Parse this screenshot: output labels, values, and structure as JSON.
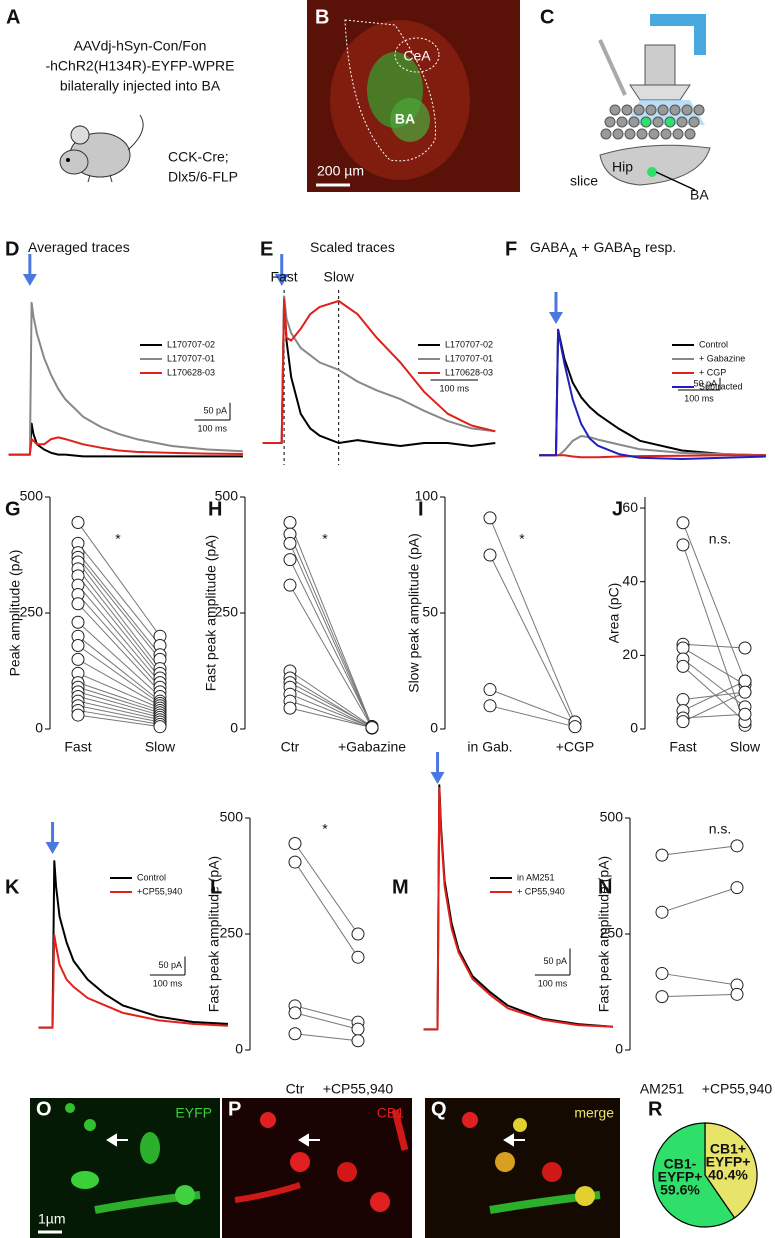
{
  "panel_a": {
    "label": "A",
    "lines": [
      "AAVdj-hSyn-Con/Fon",
      "-hChR2(H134R)-EYFP-WPRE",
      "bilaterally injected into BA"
    ],
    "mouse_lines": [
      "CCK-Cre;",
      "Dlx5/6-FLP"
    ]
  },
  "panel_b": {
    "label": "B",
    "regions": [
      "CeA",
      "BA"
    ],
    "scale_bar": "200 µm"
  },
  "panel_c": {
    "label": "C",
    "parts": [
      "Hip",
      "slice",
      "BA"
    ]
  },
  "images": {
    "o": {
      "label": "O",
      "channel": "EYFP",
      "scale_bar": "1µm"
    },
    "p": {
      "label": "P",
      "channel": "CB1"
    },
    "q": {
      "label": "Q",
      "channel": "merge"
    }
  },
  "chart_data": [
    {
      "type": "trace",
      "label": "D",
      "title": [
        {
          "text": "Averaged traces"
        }
      ],
      "stimulus": 0,
      "x": [
        -60,
        -5,
        0,
        5,
        10,
        20,
        40,
        60,
        80,
        100,
        150,
        200,
        250,
        300,
        400,
        500,
        600
      ],
      "series": [
        {
          "name": "L170707-02",
          "color": "#000000",
          "values": [
            0,
            0,
            0,
            90,
            60,
            30,
            15,
            5,
            0,
            0,
            -5,
            -5,
            -5,
            -5,
            -5,
            -5,
            -5
          ]
        },
        {
          "name": "L170707-01",
          "color": "#888888",
          "values": [
            0,
            0,
            0,
            440,
            400,
            350,
            280,
            230,
            190,
            160,
            110,
            80,
            60,
            45,
            25,
            15,
            10
          ]
        },
        {
          "name": "L170628-03",
          "color": "#e0201b",
          "values": [
            0,
            0,
            0,
            45,
            40,
            30,
            30,
            45,
            50,
            45,
            30,
            20,
            12,
            8,
            5,
            3,
            2
          ]
        }
      ],
      "xlim": [
        -70,
        620
      ],
      "ylim": [
        -30,
        500
      ],
      "scale_bar": {
        "y": {
          "value": 50,
          "label": "50 pA"
        },
        "x": {
          "value": 100,
          "label": "100 ms"
        }
      }
    },
    {
      "type": "trace",
      "label": "E",
      "title": [
        {
          "text": "Scaled traces"
        }
      ],
      "stimulus": 0,
      "x": [
        -40,
        -5,
        0,
        5,
        10,
        20,
        40,
        60,
        80,
        120,
        160,
        200,
        250,
        300,
        350,
        400,
        450
      ],
      "series": [
        {
          "name": "L170707-02",
          "color": "#000000",
          "values": [
            0,
            0,
            0,
            1.0,
            0.7,
            0.45,
            0.2,
            0.1,
            0.05,
            0.0,
            0.02,
            0.0,
            -0.02,
            0,
            0,
            -0.02,
            0
          ]
        },
        {
          "name": "L170707-01",
          "color": "#888888",
          "values": [
            0,
            0,
            0,
            1.0,
            0.85,
            0.75,
            0.65,
            0.6,
            0.55,
            0.5,
            0.42,
            0.36,
            0.3,
            0.22,
            0.15,
            0.1,
            0.08
          ]
        },
        {
          "name": "L170628-03",
          "color": "#e0201b",
          "values": [
            0,
            0,
            0,
            0.98,
            0.72,
            0.7,
            0.78,
            0.88,
            0.93,
            0.97,
            0.88,
            0.72,
            0.55,
            0.35,
            0.2,
            0.12,
            0.08
          ]
        }
      ],
      "markers": [
        {
          "x": 5,
          "label": "Fast"
        },
        {
          "x": 120,
          "label": "Slow"
        }
      ],
      "xlim": [
        -50,
        460
      ],
      "ylim": [
        -0.15,
        1.1
      ],
      "scale_bar": {
        "x": {
          "value": 100,
          "label": "100 ms"
        }
      }
    },
    {
      "type": "trace",
      "label": "F",
      "title": [
        {
          "text": "GABA"
        },
        {
          "text": "A",
          "subscript": true
        },
        {
          "text": " + GABA"
        },
        {
          "text": "B",
          "subscript": true
        },
        {
          "text": " resp."
        }
      ],
      "stimulus": 0,
      "x": [
        -40,
        -5,
        0,
        5,
        10,
        20,
        40,
        60,
        80,
        100,
        150,
        200,
        300,
        400,
        500
      ],
      "series": [
        {
          "name": "Control",
          "color": "#000000",
          "values": [
            0,
            0,
            0,
            520,
            480,
            400,
            300,
            240,
            200,
            170,
            110,
            60,
            20,
            5,
            0
          ]
        },
        {
          "name": "+ Gabazine",
          "color": "#888888",
          "values": [
            0,
            0,
            0,
            0,
            5,
            20,
            60,
            80,
            75,
            65,
            45,
            25,
            10,
            5,
            0
          ]
        },
        {
          "name": "+ CGP",
          "color": "#e0201b",
          "values": [
            0,
            0,
            0,
            0,
            0,
            0,
            -5,
            -8,
            -8,
            -8,
            -5,
            -3,
            -2,
            0,
            0
          ]
        },
        {
          "name": "Subtracted",
          "color": "#2020c0",
          "values": [
            0,
            0,
            0,
            520,
            470,
            380,
            230,
            130,
            70,
            40,
            5,
            -10,
            -15,
            -10,
            -5
          ]
        }
      ],
      "xlim": [
        -50,
        510
      ],
      "ylim": [
        -40,
        560
      ],
      "scale_bar": {
        "y": {
          "value": 50,
          "label": "50 pA"
        },
        "x": {
          "value": 100,
          "label": "100 ms"
        }
      }
    },
    {
      "type": "paired",
      "label": "G",
      "ylabel": "Peak amplitude (pA)",
      "categories": [
        "Fast",
        "Slow"
      ],
      "significance": "*",
      "pairs": [
        [
          445,
          200
        ],
        [
          400,
          180
        ],
        [
          380,
          160
        ],
        [
          370,
          150
        ],
        [
          360,
          130
        ],
        [
          345,
          120
        ],
        [
          330,
          110
        ],
        [
          310,
          100
        ],
        [
          290,
          90
        ],
        [
          270,
          80
        ],
        [
          230,
          70
        ],
        [
          200,
          60
        ],
        [
          180,
          55
        ],
        [
          150,
          50
        ],
        [
          120,
          45
        ],
        [
          100,
          40
        ],
        [
          90,
          35
        ],
        [
          80,
          30
        ],
        [
          70,
          25
        ],
        [
          60,
          20
        ],
        [
          50,
          15
        ],
        [
          40,
          10
        ],
        [
          30,
          5
        ]
      ],
      "ylim": [
        0,
        500
      ],
      "yticks": [
        0,
        250,
        500
      ]
    },
    {
      "type": "paired",
      "label": "H",
      "ylabel": "Fast peak amplitude (pA)",
      "categories": [
        "Ctr",
        "+Gabazine"
      ],
      "significance": "*",
      "pairs": [
        [
          445,
          5
        ],
        [
          420,
          5
        ],
        [
          400,
          3
        ],
        [
          365,
          5
        ],
        [
          310,
          3
        ],
        [
          125,
          5
        ],
        [
          110,
          3
        ],
        [
          100,
          5
        ],
        [
          90,
          2
        ],
        [
          75,
          3
        ],
        [
          60,
          2
        ],
        [
          45,
          3
        ]
      ],
      "ylim": [
        0,
        500
      ],
      "yticks": [
        0,
        250,
        500
      ]
    },
    {
      "type": "paired",
      "label": "I",
      "ylabel": "Slow peak amplitude (pA)",
      "categories": [
        "in Gab.",
        "+CGP"
      ],
      "significance": "*",
      "pairs": [
        [
          91,
          3
        ],
        [
          75,
          1
        ],
        [
          17,
          3
        ],
        [
          10,
          1
        ]
      ],
      "ylim": [
        0,
        100
      ],
      "yticks": [
        0,
        50,
        100
      ]
    },
    {
      "type": "paired",
      "label": "J",
      "ylabel": "Area (pC)",
      "categories": [
        "Fast",
        "Slow"
      ],
      "significance": "n.s.",
      "pairs": [
        [
          56,
          13
        ],
        [
          50,
          1
        ],
        [
          23,
          22
        ],
        [
          22,
          12
        ],
        [
          19,
          6
        ],
        [
          17,
          2
        ],
        [
          8,
          10
        ],
        [
          5,
          13
        ],
        [
          3,
          4
        ],
        [
          2,
          10
        ]
      ],
      "ylim": [
        0,
        63
      ],
      "yticks": [
        0,
        20,
        40,
        60
      ]
    },
    {
      "type": "trace",
      "label": "K",
      "stimulus": 0,
      "x": [
        -40,
        -5,
        0,
        5,
        10,
        20,
        40,
        60,
        100,
        150,
        200,
        300,
        400,
        500
      ],
      "series": [
        {
          "name": "Control",
          "color": "#000000",
          "values": [
            0,
            0,
            0,
            450,
            380,
            300,
            230,
            180,
            130,
            90,
            60,
            30,
            15,
            10
          ]
        },
        {
          "name": "+CP55,940",
          "color": "#e0201b",
          "values": [
            0,
            0,
            0,
            250,
            220,
            170,
            130,
            110,
            80,
            60,
            40,
            20,
            10,
            5
          ]
        }
      ],
      "xlim": [
        -50,
        520
      ],
      "ylim": [
        -20,
        480
      ],
      "scale_bar": {
        "y": {
          "value": 50,
          "label": "50 pA"
        },
        "x": {
          "value": 100,
          "label": "100 ms"
        }
      }
    },
    {
      "type": "paired",
      "label": "L",
      "ylabel": "Fast peak amplitude (pA)",
      "categories": [
        "Ctr",
        "+CP55,940"
      ],
      "significance": "*",
      "pairs": [
        [
          445,
          250
        ],
        [
          405,
          200
        ],
        [
          95,
          60
        ],
        [
          80,
          45
        ],
        [
          35,
          20
        ]
      ],
      "ylim": [
        0,
        500
      ],
      "yticks": [
        0,
        250,
        500
      ]
    },
    {
      "type": "trace",
      "label": "M",
      "stimulus": 0,
      "x": [
        -40,
        -5,
        0,
        5,
        10,
        20,
        40,
        60,
        100,
        150,
        200,
        300,
        400,
        500
      ],
      "series": [
        {
          "name": "in AM251",
          "color": "#000000",
          "values": [
            0,
            0,
            0,
            460,
            380,
            280,
            200,
            150,
            100,
            70,
            45,
            20,
            10,
            5
          ]
        },
        {
          "name": "+ CP55,940",
          "color": "#e0201b",
          "values": [
            0,
            0,
            0,
            455,
            370,
            270,
            190,
            145,
            95,
            65,
            40,
            18,
            8,
            5
          ]
        }
      ],
      "xlim": [
        -50,
        520
      ],
      "ylim": [
        -20,
        470
      ],
      "scale_bar": {
        "y": {
          "value": 50,
          "label": "50 pA"
        },
        "x": {
          "value": 100,
          "label": "100 ms"
        }
      }
    },
    {
      "type": "paired",
      "label": "N",
      "ylabel": "Fast peak amplitude (pA)",
      "categories": [
        "AM251",
        "+CP55,940"
      ],
      "significance": "n.s.",
      "pairs": [
        [
          420,
          440
        ],
        [
          297,
          350
        ],
        [
          165,
          140
        ],
        [
          115,
          120
        ]
      ],
      "ylim": [
        0,
        500
      ],
      "yticks": [
        0,
        250,
        500
      ]
    },
    {
      "type": "pie",
      "label": "R",
      "labels": [
        [
          "CB1+",
          "EYFP+"
        ],
        [
          "CB1-",
          "EYFP+"
        ]
      ],
      "values": [
        40.4,
        59.6
      ],
      "value_labels": [
        "40.4%",
        "59.6%"
      ],
      "colors": [
        "#e8e46a",
        "#2ee06a"
      ]
    }
  ]
}
